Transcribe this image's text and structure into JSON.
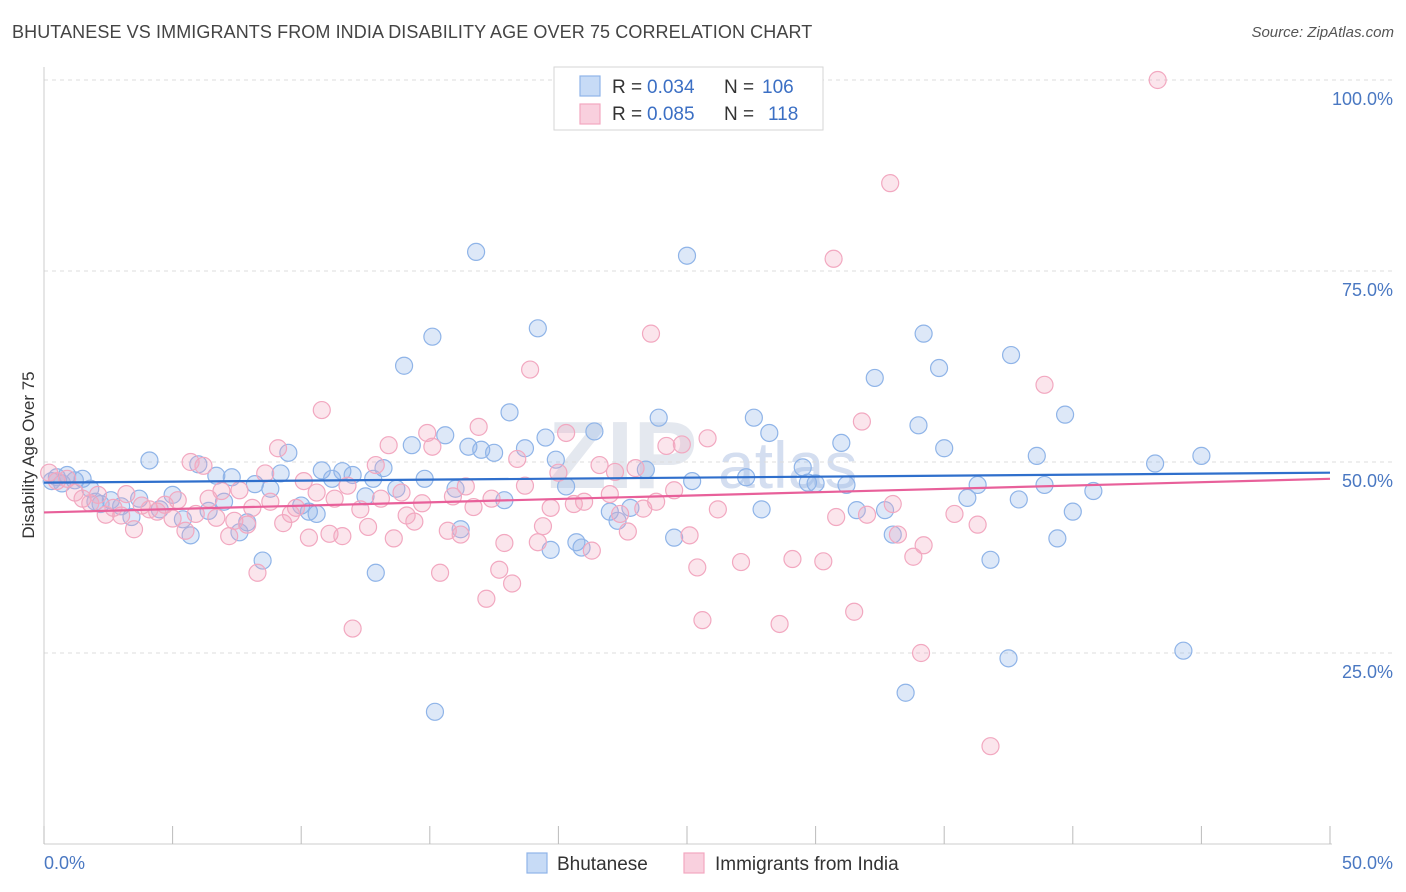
{
  "title": "BHUTANESE VS IMMIGRANTS FROM INDIA DISABILITY AGE OVER 75 CORRELATION CHART",
  "source": "Source: ZipAtlas.com",
  "watermark": {
    "zip": "ZIP",
    "atlas": "atlas"
  },
  "colors": {
    "series1": "#8fb4e8",
    "series1_line": "#2f6fcc",
    "series2": "#f2a8c0",
    "series2_line": "#e8609a",
    "axis_label": "#4a78c2",
    "grid": "#dcdcdc"
  },
  "legend": {
    "rows": [
      {
        "r_label": "R =",
        "r_value": "0.034",
        "n_label": "N =",
        "n_value": "106"
      },
      {
        "r_label": "R =",
        "r_value": "0.085",
        "n_label": "N =",
        "n_value": "118"
      }
    ]
  },
  "chart_data": {
    "type": "scatter",
    "title": "BHUTANESE VS IMMIGRANTS FROM INDIA DISABILITY AGE OVER 75 CORRELATION CHART",
    "xlabel": "",
    "ylabel": "Disability Age Over 75",
    "xlim": [
      0,
      50
    ],
    "ylim": [
      0,
      105
    ],
    "x_tick_labels": [
      "0.0%",
      "50.0%"
    ],
    "y_ticks": [
      25,
      50,
      75,
      100
    ],
    "y_tick_labels": [
      "25.0%",
      "50.0%",
      "75.0%",
      "100.0%"
    ],
    "grid": true,
    "legend_position": "top-center",
    "series": [
      {
        "name": "Bhutanese",
        "r": 0.034,
        "n": 106,
        "trend": {
          "x": [
            0,
            50
          ],
          "y": [
            47.3,
            48.6
          ]
        },
        "points": [
          [
            0.3,
            47.5
          ],
          [
            0.5,
            48.0
          ],
          [
            0.7,
            47.2
          ],
          [
            0.9,
            48.3
          ],
          [
            1.2,
            47.6
          ],
          [
            1.5,
            47.8
          ],
          [
            1.8,
            46.5
          ],
          [
            2.2,
            44.5
          ],
          [
            2.6,
            45.0
          ],
          [
            3.0,
            44.2
          ],
          [
            3.4,
            42.8
          ],
          [
            3.7,
            45.2
          ],
          [
            4.1,
            50.2
          ],
          [
            4.5,
            43.8
          ],
          [
            5.0,
            45.7
          ],
          [
            5.4,
            42.5
          ],
          [
            5.7,
            40.4
          ],
          [
            6.0,
            49.7
          ],
          [
            6.4,
            43.6
          ],
          [
            6.7,
            48.2
          ],
          [
            7.0,
            44.8
          ],
          [
            7.3,
            48.0
          ],
          [
            7.6,
            40.8
          ],
          [
            7.9,
            42.1
          ],
          [
            8.2,
            47.1
          ],
          [
            8.5,
            37.1
          ],
          [
            8.8,
            46.5
          ],
          [
            9.2,
            48.5
          ],
          [
            9.5,
            51.2
          ],
          [
            10.0,
            44.3
          ],
          [
            10.3,
            43.5
          ],
          [
            10.6,
            43.2
          ],
          [
            10.8,
            48.9
          ],
          [
            11.2,
            47.8
          ],
          [
            11.6,
            48.8
          ],
          [
            12.0,
            48.3
          ],
          [
            12.5,
            45.5
          ],
          [
            12.8,
            47.8
          ],
          [
            12.9,
            35.5
          ],
          [
            13.2,
            49.2
          ],
          [
            13.7,
            46.5
          ],
          [
            14.0,
            62.6
          ],
          [
            14.3,
            52.2
          ],
          [
            14.8,
            47.8
          ],
          [
            15.1,
            66.4
          ],
          [
            15.2,
            17.3
          ],
          [
            15.6,
            53.5
          ],
          [
            16.0,
            46.5
          ],
          [
            16.2,
            41.2
          ],
          [
            16.5,
            52.0
          ],
          [
            16.8,
            77.5
          ],
          [
            17.0,
            51.6
          ],
          [
            17.5,
            51.2
          ],
          [
            17.9,
            45.0
          ],
          [
            18.1,
            56.5
          ],
          [
            18.7,
            51.8
          ],
          [
            19.2,
            67.5
          ],
          [
            19.5,
            53.2
          ],
          [
            19.7,
            38.5
          ],
          [
            19.9,
            50.3
          ],
          [
            20.3,
            46.8
          ],
          [
            20.7,
            39.5
          ],
          [
            20.9,
            38.8
          ],
          [
            21.4,
            54.0
          ],
          [
            22.0,
            43.5
          ],
          [
            22.3,
            42.3
          ],
          [
            22.8,
            44.0
          ],
          [
            23.4,
            49.0
          ],
          [
            23.9,
            55.8
          ],
          [
            24.5,
            40.1
          ],
          [
            25.0,
            77.0
          ],
          [
            25.2,
            47.5
          ],
          [
            27.3,
            48.0
          ],
          [
            27.6,
            55.8
          ],
          [
            27.9,
            43.8
          ],
          [
            28.2,
            53.8
          ],
          [
            29.5,
            49.3
          ],
          [
            29.7,
            47.3
          ],
          [
            30.0,
            47.2
          ],
          [
            31.0,
            52.5
          ],
          [
            31.2,
            47.0
          ],
          [
            31.6,
            43.7
          ],
          [
            32.3,
            61.0
          ],
          [
            32.7,
            43.7
          ],
          [
            33.0,
            40.5
          ],
          [
            33.5,
            19.8
          ],
          [
            34.0,
            54.8
          ],
          [
            34.2,
            66.8
          ],
          [
            34.8,
            62.3
          ],
          [
            35.0,
            51.8
          ],
          [
            35.9,
            45.3
          ],
          [
            36.3,
            47.0
          ],
          [
            36.8,
            37.2
          ],
          [
            37.5,
            24.3
          ],
          [
            37.6,
            64.0
          ],
          [
            37.9,
            45.1
          ],
          [
            38.6,
            50.8
          ],
          [
            38.9,
            47.0
          ],
          [
            39.4,
            40.0
          ],
          [
            39.7,
            56.2
          ],
          [
            40.0,
            43.5
          ],
          [
            40.8,
            46.2
          ],
          [
            43.2,
            49.8
          ],
          [
            44.3,
            25.3
          ],
          [
            45.0,
            50.8
          ],
          [
            2.0,
            44.8
          ]
        ]
      },
      {
        "name": "Immigrants from India",
        "r": 0.085,
        "n": 118,
        "trend": {
          "x": [
            0,
            50
          ],
          "y": [
            43.4,
            47.8
          ]
        },
        "points": [
          [
            0.2,
            48.6
          ],
          [
            0.5,
            47.5
          ],
          [
            0.9,
            47.8
          ],
          [
            1.2,
            46.0
          ],
          [
            1.5,
            45.2
          ],
          [
            1.8,
            44.6
          ],
          [
            2.1,
            45.7
          ],
          [
            2.4,
            43.1
          ],
          [
            2.7,
            44.0
          ],
          [
            3.0,
            43.0
          ],
          [
            3.2,
            45.8
          ],
          [
            3.5,
            41.2
          ],
          [
            3.8,
            44.3
          ],
          [
            4.1,
            43.8
          ],
          [
            4.4,
            43.5
          ],
          [
            4.7,
            44.4
          ],
          [
            5.0,
            42.6
          ],
          [
            5.2,
            45.0
          ],
          [
            5.5,
            41.0
          ],
          [
            5.7,
            50.0
          ],
          [
            5.9,
            43.2
          ],
          [
            6.2,
            49.5
          ],
          [
            6.4,
            45.2
          ],
          [
            6.7,
            42.7
          ],
          [
            6.9,
            46.2
          ],
          [
            7.2,
            40.3
          ],
          [
            7.4,
            42.3
          ],
          [
            7.6,
            46.3
          ],
          [
            7.9,
            41.8
          ],
          [
            8.1,
            44.0
          ],
          [
            8.3,
            35.5
          ],
          [
            8.6,
            48.5
          ],
          [
            8.8,
            44.8
          ],
          [
            9.1,
            51.8
          ],
          [
            9.3,
            42.0
          ],
          [
            9.6,
            43.2
          ],
          [
            9.8,
            44.0
          ],
          [
            10.1,
            47.5
          ],
          [
            10.3,
            40.1
          ],
          [
            10.6,
            46.0
          ],
          [
            10.8,
            56.8
          ],
          [
            11.1,
            40.6
          ],
          [
            11.3,
            45.2
          ],
          [
            11.6,
            40.3
          ],
          [
            11.8,
            46.9
          ],
          [
            12.0,
            28.2
          ],
          [
            12.3,
            43.8
          ],
          [
            12.6,
            41.5
          ],
          [
            12.9,
            49.6
          ],
          [
            13.1,
            45.2
          ],
          [
            13.4,
            52.2
          ],
          [
            13.6,
            40.0
          ],
          [
            13.9,
            46.0
          ],
          [
            14.1,
            43.0
          ],
          [
            14.4,
            42.2
          ],
          [
            14.7,
            44.6
          ],
          [
            14.9,
            53.8
          ],
          [
            15.1,
            52.0
          ],
          [
            15.4,
            35.5
          ],
          [
            15.7,
            41.0
          ],
          [
            15.9,
            45.5
          ],
          [
            16.2,
            40.5
          ],
          [
            16.4,
            46.8
          ],
          [
            16.7,
            44.1
          ],
          [
            16.9,
            54.6
          ],
          [
            17.2,
            32.1
          ],
          [
            17.4,
            45.2
          ],
          [
            17.7,
            35.9
          ],
          [
            17.9,
            39.4
          ],
          [
            18.2,
            34.1
          ],
          [
            18.4,
            50.4
          ],
          [
            18.7,
            46.9
          ],
          [
            18.9,
            62.1
          ],
          [
            19.2,
            39.5
          ],
          [
            19.4,
            41.6
          ],
          [
            19.7,
            44.0
          ],
          [
            20.0,
            48.6
          ],
          [
            20.3,
            53.8
          ],
          [
            20.6,
            44.5
          ],
          [
            21.0,
            44.8
          ],
          [
            21.3,
            38.4
          ],
          [
            21.6,
            49.6
          ],
          [
            22.0,
            45.8
          ],
          [
            22.2,
            48.7
          ],
          [
            22.4,
            43.2
          ],
          [
            22.7,
            40.9
          ],
          [
            23.0,
            49.2
          ],
          [
            23.3,
            43.9
          ],
          [
            23.6,
            66.8
          ],
          [
            23.8,
            44.8
          ],
          [
            24.2,
            52.1
          ],
          [
            24.5,
            46.3
          ],
          [
            24.8,
            52.3
          ],
          [
            25.1,
            40.4
          ],
          [
            25.4,
            36.2
          ],
          [
            25.6,
            29.3
          ],
          [
            25.8,
            53.1
          ],
          [
            26.2,
            43.8
          ],
          [
            27.1,
            36.9
          ],
          [
            28.6,
            28.8
          ],
          [
            29.1,
            37.3
          ],
          [
            30.3,
            37.0
          ],
          [
            30.7,
            76.6
          ],
          [
            30.8,
            42.8
          ],
          [
            31.5,
            30.4
          ],
          [
            31.8,
            55.3
          ],
          [
            32.0,
            43.1
          ],
          [
            32.9,
            86.5
          ],
          [
            33.0,
            44.5
          ],
          [
            33.2,
            40.5
          ],
          [
            33.8,
            37.6
          ],
          [
            34.1,
            25.0
          ],
          [
            34.2,
            39.1
          ],
          [
            35.4,
            43.2
          ],
          [
            36.3,
            41.8
          ],
          [
            36.8,
            12.8
          ],
          [
            38.9,
            60.1
          ],
          [
            43.3,
            100.0
          ]
        ]
      }
    ]
  },
  "bottom_legend": [
    {
      "label": "Bhutanese"
    },
    {
      "label": "Immigrants from India"
    }
  ]
}
